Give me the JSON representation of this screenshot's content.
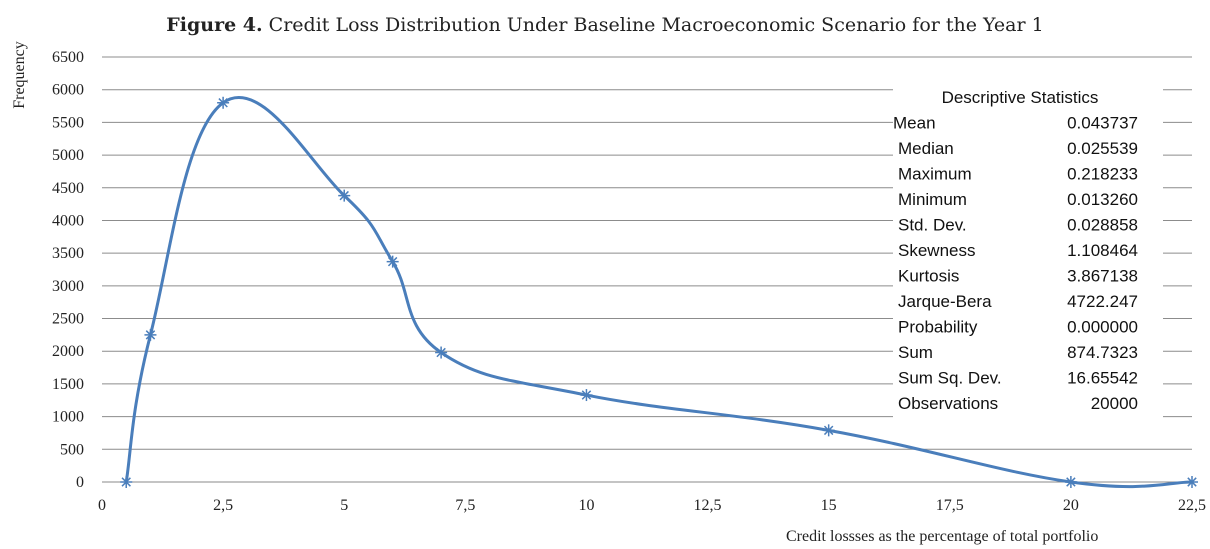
{
  "figure": {
    "label": "Figure 4.",
    "caption": "Credit Loss Distribution Under Baseline Macroeconomic Scenario for the Year 1"
  },
  "chart_data": {
    "type": "line",
    "title": "Figure 4. Credit Loss Distribution Under Baseline Macroeconomic Scenario for the Year 1",
    "xlabel": "Credit lossses as the percentage  of total portfolio",
    "ylabel": "Frequency",
    "xlim": [
      0,
      22.5
    ],
    "ylim": [
      0,
      6500
    ],
    "xticks": [
      0,
      2.5,
      5,
      7.5,
      10,
      12.5,
      15,
      17.5,
      20,
      22.5
    ],
    "xtick_labels": [
      "0",
      "2,5",
      "5",
      "7,5",
      "10",
      "12,5",
      "15",
      "17,5",
      "20",
      "22,5"
    ],
    "yticks": [
      0,
      500,
      1000,
      1500,
      2000,
      2500,
      3000,
      3500,
      4000,
      4500,
      5000,
      5500,
      6000,
      6500
    ],
    "grid": "horizontal",
    "series": [
      {
        "color": "#4a7ebb",
        "marker": "asterisk",
        "smooth": true,
        "x": [
          0.5,
          1,
          2.5,
          5,
          6,
          7,
          10,
          15,
          20,
          22.5
        ],
        "y": [
          0,
          2250,
          5800,
          4380,
          3370,
          1980,
          1330,
          790,
          0,
          0
        ]
      }
    ],
    "annotation_table": {
      "title": "Descriptive Statistics",
      "rows": [
        {
          "label": "Mean",
          "value": "0.043737"
        },
        {
          "label": "Median",
          "value": "0.025539"
        },
        {
          "label": "Maximum",
          "value": "0.218233"
        },
        {
          "label": "Minimum",
          "value": "0.013260"
        },
        {
          "label": "Std. Dev.",
          "value": "0.028858"
        },
        {
          "label": "Skewness",
          "value": "1.108464"
        },
        {
          "label": "Kurtosis",
          "value": "3.867138"
        },
        {
          "label": "Jarque-Bera",
          "value": "4722.247"
        },
        {
          "label": "Probability",
          "value": "0.000000"
        },
        {
          "label": "Sum",
          "value": "874.7323"
        },
        {
          "label": "Sum Sq. Dev.",
          "value": "16.65542"
        },
        {
          "label": "Observations",
          "value": "20000"
        }
      ]
    }
  }
}
